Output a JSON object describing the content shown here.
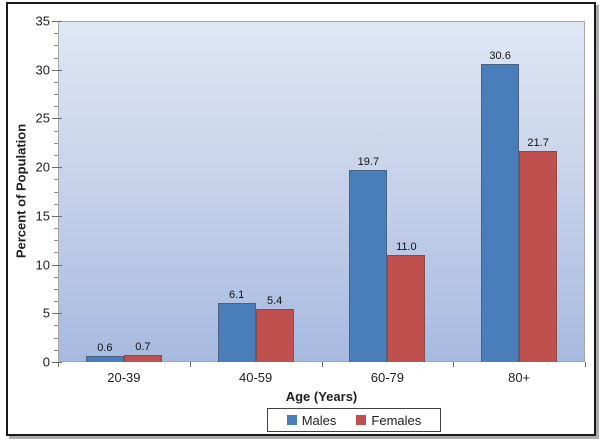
{
  "chart_data": {
    "type": "bar",
    "title": "",
    "categories": [
      "20-39",
      "40-59",
      "60-79",
      "80+"
    ],
    "series": [
      {
        "name": "Males",
        "color": "#4a7ebb",
        "values": [
          0.6,
          6.1,
          19.7,
          30.6
        ]
      },
      {
        "name": "Females",
        "color": "#c0504d",
        "values": [
          0.7,
          5.4,
          11.0,
          21.7
        ]
      }
    ],
    "xlabel": "Age (Years)",
    "ylabel": "Percent of Population",
    "ylim": [
      0,
      35
    ],
    "y_major_ticks": [
      0,
      5,
      10,
      15,
      20,
      25,
      30,
      35
    ],
    "y_minor_step": 1.25,
    "grid": false,
    "data_labels": true,
    "data_labels_decimals": 1,
    "legend_position": "bottom"
  },
  "style": {
    "plot_gradient_top": "#dfe7f4",
    "plot_gradient_bottom": "#a6badf",
    "plot_border": "#a6a6a6",
    "tick_color": "#6e6e6e",
    "frame_border": "#1a1a1a",
    "legend_border": "#404040",
    "legend_bg": "#ffffff",
    "text_color": "#1f1f1f"
  }
}
